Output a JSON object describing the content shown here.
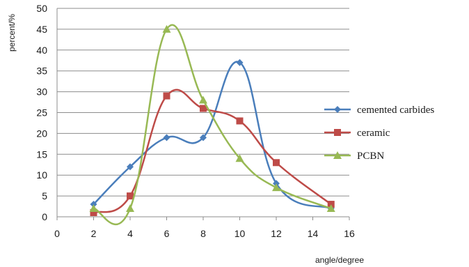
{
  "chart_data": {
    "type": "line",
    "smooth": true,
    "title": "",
    "xlabel": "angle/degree",
    "ylabel": "percent/%",
    "xlim": [
      0,
      16
    ],
    "ylim": [
      0,
      50
    ],
    "xticks": [
      0,
      2,
      4,
      6,
      8,
      10,
      12,
      14,
      16
    ],
    "yticks": [
      0,
      5,
      10,
      15,
      20,
      25,
      30,
      35,
      40,
      45,
      50
    ],
    "grid": "horizontal",
    "legend_position": "right",
    "series": [
      {
        "name": "cemented carbides",
        "marker": "diamond",
        "color": "#4a7ebb",
        "points": [
          [
            2,
            3
          ],
          [
            4,
            12
          ],
          [
            6,
            19
          ],
          [
            8,
            19
          ],
          [
            10,
            37
          ],
          [
            12,
            8
          ],
          [
            15,
            2
          ]
        ]
      },
      {
        "name": "ceramic",
        "marker": "square",
        "color": "#be4b48",
        "points": [
          [
            2,
            1
          ],
          [
            4,
            5
          ],
          [
            6,
            29
          ],
          [
            8,
            26
          ],
          [
            10,
            23
          ],
          [
            12,
            13
          ],
          [
            15,
            3
          ]
        ]
      },
      {
        "name": "PCBN",
        "marker": "triangle",
        "color": "#98b954",
        "points": [
          [
            2,
            2
          ],
          [
            4,
            2
          ],
          [
            6,
            45
          ],
          [
            8,
            28
          ],
          [
            10,
            14
          ],
          [
            12,
            7
          ],
          [
            15,
            2
          ]
        ]
      }
    ]
  }
}
